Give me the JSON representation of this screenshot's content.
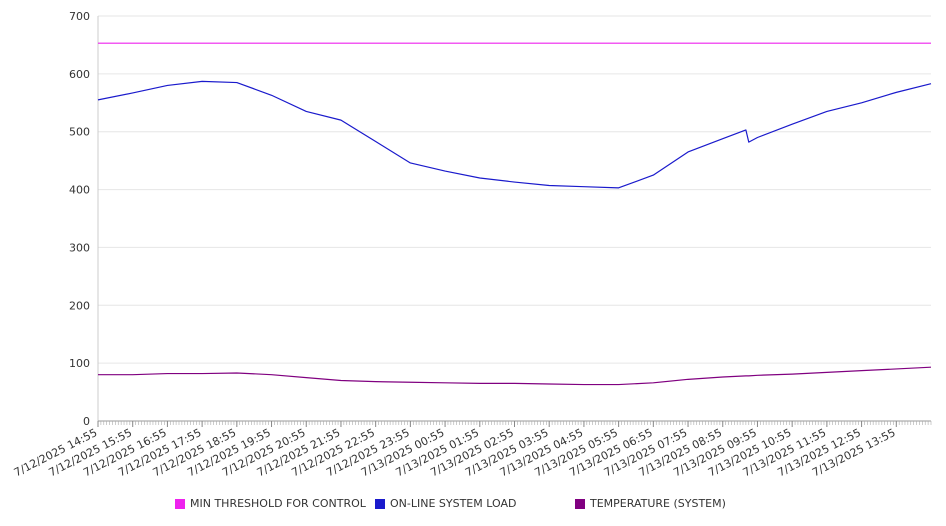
{
  "chart_data": {
    "type": "line",
    "ylim": [
      0,
      700
    ],
    "yticks": [
      0,
      100,
      200,
      300,
      400,
      500,
      600,
      700
    ],
    "grid": true,
    "legend_position": "bottom",
    "x_tick_labels": [
      "7/12/2025 14:55",
      "7/12/2025 15:55",
      "7/12/2025 16:55",
      "7/12/2025 17:55",
      "7/12/2025 18:55",
      "7/12/2025 19:55",
      "7/12/2025 20:55",
      "7/12/2025 21:55",
      "7/12/2025 22:55",
      "7/12/2025 23:55",
      "7/13/2025 00:55",
      "7/13/2025 01:55",
      "7/13/2025 02:55",
      "7/13/2025 03:55",
      "7/13/2025 04:55",
      "7/13/2025 05:55",
      "7/13/2025 06:55",
      "7/13/2025 07:55",
      "7/13/2025 08:55",
      "7/13/2025 09:55",
      "7/13/2025 10:55",
      "7/13/2025 11:55",
      "7/13/2025 12:55",
      "7/13/2025 13:55"
    ],
    "x": [
      "7/12/2025 14:55",
      "7/12/2025 15:55",
      "7/12/2025 16:55",
      "7/12/2025 17:55",
      "7/12/2025 18:55",
      "7/12/2025 19:55",
      "7/12/2025 20:55",
      "7/12/2025 21:55",
      "7/12/2025 22:55",
      "7/12/2025 23:55",
      "7/13/2025 00:55",
      "7/13/2025 01:55",
      "7/13/2025 02:55",
      "7/13/2025 03:55",
      "7/13/2025 04:55",
      "7/13/2025 05:55",
      "7/13/2025 06:55",
      "7/13/2025 07:55",
      "7/13/2025 08:55",
      "7/13/2025 09:35",
      "7/13/2025 09:40",
      "7/13/2025 09:55",
      "7/13/2025 10:55",
      "7/13/2025 11:55",
      "7/13/2025 12:55",
      "7/13/2025 13:55",
      "7/13/2025 14:55"
    ],
    "series": [
      {
        "name": "MIN THRESHOLD FOR CONTROL",
        "color": "#ee22ee",
        "values": [
          653,
          653,
          653,
          653,
          653,
          653,
          653,
          653,
          653,
          653,
          653,
          653,
          653,
          653,
          653,
          653,
          653,
          653,
          653,
          653,
          653,
          653,
          653,
          653,
          653,
          653,
          653
        ]
      },
      {
        "name": "ON-LINE SYSTEM LOAD",
        "color": "#1a1acc",
        "values": [
          555,
          567,
          580,
          587,
          585,
          563,
          535,
          520,
          483,
          446,
          432,
          420,
          413,
          407,
          405,
          403,
          425,
          465,
          488,
          503,
          482,
          490,
          513,
          535,
          550,
          568,
          583
        ]
      },
      {
        "name": "TEMPERATURE (SYSTEM)",
        "color": "#800080",
        "values": [
          80,
          80,
          82,
          82,
          83,
          80,
          75,
          70,
          68,
          67,
          66,
          65,
          65,
          64,
          63,
          63,
          66,
          72,
          76,
          78,
          78,
          79,
          81,
          84,
          87,
          90,
          93
        ]
      }
    ]
  }
}
